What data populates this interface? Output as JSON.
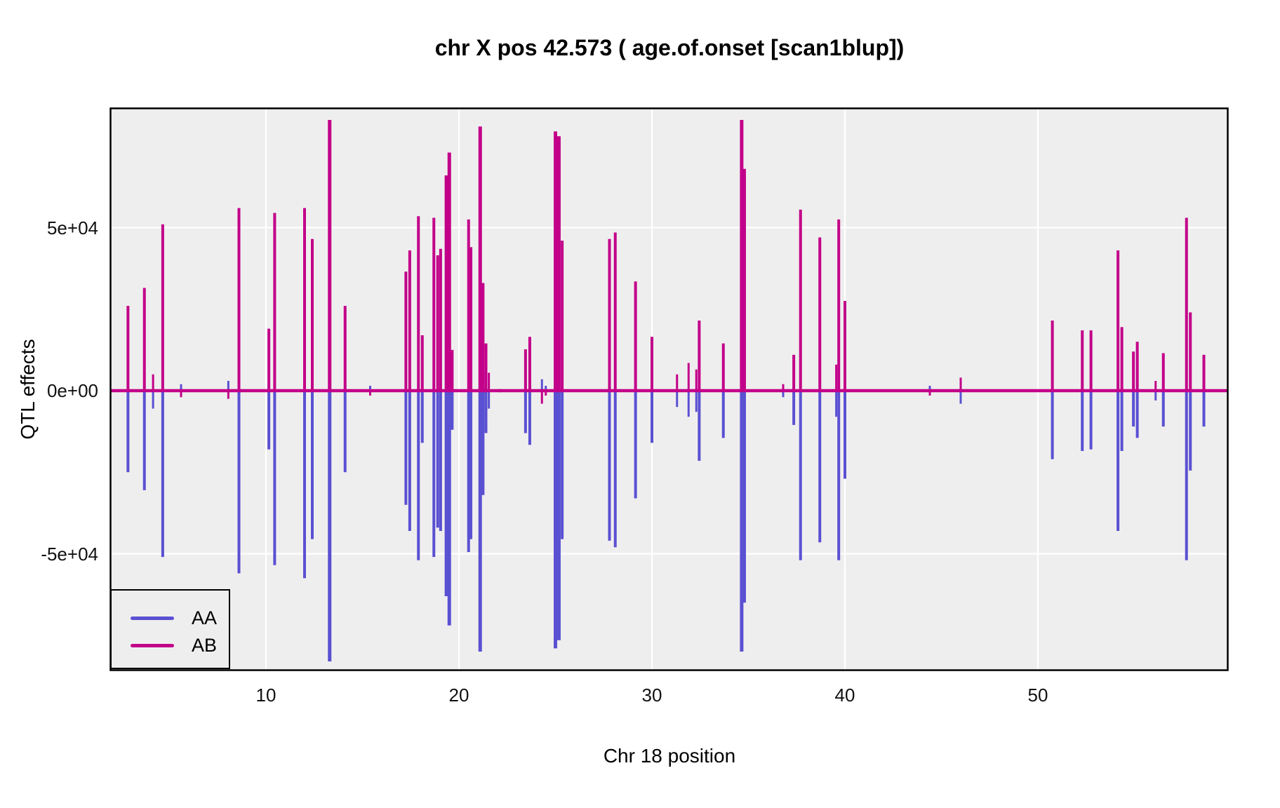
{
  "title": "chr X pos 42.573 ( age.of.onset  [scan1blup])",
  "axes": {
    "x": {
      "label": "Chr 18 position",
      "tick_labels": [
        "10",
        "20",
        "30",
        "40",
        "50"
      ],
      "tick_values": [
        10,
        20,
        30,
        40,
        50
      ],
      "range": [
        1.9,
        59.8
      ]
    },
    "y": {
      "label": "QTL effects",
      "tick_labels": [
        "5e+04",
        "0e+00",
        "-5e+04"
      ],
      "tick_values": [
        50000,
        0,
        -50000
      ],
      "range": [
        -85700,
        86500
      ]
    }
  },
  "legend": {
    "items": [
      {
        "label": "AA",
        "color": "#5A50D2"
      },
      {
        "label": "AB",
        "color": "#C20089"
      }
    ]
  },
  "colors": {
    "panel_background": "#EFEEEE",
    "gridline": "#FFFFFF",
    "panel_border": "#000000",
    "aa_line": "#5A50D2",
    "ab_line": "#C20089",
    "baseline": "#C20089",
    "text": "#000000"
  },
  "chart_data": {
    "type": "line",
    "title": "chr X pos 42.573 ( age.of.onset  [scan1blup])",
    "xlabel": "Chr 18 position",
    "ylabel": "QTL effects",
    "xlim": [
      1.9,
      59.8
    ],
    "ylim": [
      -85700,
      86500
    ],
    "grid": "major-white-on-gray",
    "legend_position": "bottom-left-inside",
    "series": [
      {
        "name": "AA",
        "color": "#5A50D2",
        "direction": "mostly negative spikes"
      },
      {
        "name": "AB",
        "color": "#C20089",
        "direction": "mostly positive spikes"
      }
    ],
    "baseline": {
      "value": 0,
      "color": "#C20089"
    },
    "spike_format": [
      "position",
      "AA_effect",
      "AB_effect"
    ],
    "spikes": [
      [
        2.85,
        -25000,
        26000
      ],
      [
        3.7,
        -30500,
        31500
      ],
      [
        4.15,
        -5500,
        5000
      ],
      [
        4.65,
        -51000,
        51000
      ],
      [
        5.6,
        2000,
        -2000
      ],
      [
        8.05,
        3000,
        -2500
      ],
      [
        8.6,
        -56000,
        56000
      ],
      [
        10.15,
        -18000,
        19000
      ],
      [
        10.45,
        -53500,
        54500
      ],
      [
        12.0,
        -57500,
        56000
      ],
      [
        12.4,
        -45500,
        46500
      ],
      [
        13.3,
        -83000,
        83000
      ],
      [
        14.1,
        -25000,
        26000
      ],
      [
        15.4,
        1500,
        -1500
      ],
      [
        17.25,
        -35000,
        36500
      ],
      [
        17.45,
        -43000,
        43000
      ],
      [
        17.9,
        -52000,
        53500
      ],
      [
        18.1,
        -16000,
        17000
      ],
      [
        18.7,
        -51000,
        53000
      ],
      [
        18.9,
        -42000,
        41500
      ],
      [
        19.05,
        -43000,
        43500
      ],
      [
        19.35,
        -63000,
        66000
      ],
      [
        19.5,
        -72000,
        73000
      ],
      [
        19.65,
        -12000,
        12500
      ],
      [
        20.5,
        -49500,
        52500
      ],
      [
        20.62,
        -45500,
        44000
      ],
      [
        21.1,
        -80000,
        81000
      ],
      [
        21.25,
        -32000,
        33000
      ],
      [
        21.4,
        -13000,
        14500
      ],
      [
        21.55,
        -5500,
        5500
      ],
      [
        22.1,
        -500,
        500
      ],
      [
        23.45,
        -13000,
        12700
      ],
      [
        23.67,
        -16600,
        16500
      ],
      [
        24.3,
        3500,
        -4000
      ],
      [
        24.5,
        1500,
        -1500
      ],
      [
        25.0,
        -79000,
        79500
      ],
      [
        25.18,
        -76500,
        78000
      ],
      [
        25.35,
        -45500,
        46000
      ],
      [
        27.8,
        -46000,
        46500
      ],
      [
        28.1,
        -48000,
        48500
      ],
      [
        29.15,
        -33000,
        33500
      ],
      [
        30.0,
        -16000,
        16500
      ],
      [
        31.3,
        -5000,
        5000
      ],
      [
        31.9,
        -8000,
        8500
      ],
      [
        32.3,
        -6500,
        6500
      ],
      [
        32.45,
        -21500,
        21500
      ],
      [
        33.7,
        -14500,
        14500
      ],
      [
        34.65,
        -80000,
        83000
      ],
      [
        34.78,
        -65000,
        68000
      ],
      [
        36.8,
        -2000,
        2000
      ],
      [
        37.35,
        -10500,
        11000
      ],
      [
        37.7,
        -52000,
        55500
      ],
      [
        38.7,
        -46500,
        47000
      ],
      [
        39.55,
        -8000,
        8000
      ],
      [
        39.68,
        -52000,
        52500
      ],
      [
        40.0,
        -27000,
        27500
      ],
      [
        44.4,
        1500,
        -1500
      ],
      [
        46.0,
        -4000,
        4000
      ],
      [
        50.75,
        -21000,
        21500
      ],
      [
        52.3,
        -18500,
        18500
      ],
      [
        52.75,
        -18000,
        18500
      ],
      [
        54.15,
        -43000,
        43000
      ],
      [
        54.35,
        -18500,
        19500
      ],
      [
        54.95,
        -11000,
        12000
      ],
      [
        55.15,
        -14500,
        15000
      ],
      [
        56.1,
        -3000,
        3000
      ],
      [
        56.5,
        -11000,
        11500
      ],
      [
        57.7,
        -52000,
        53000
      ],
      [
        57.9,
        -24500,
        24000
      ],
      [
        58.6,
        -11000,
        11000
      ]
    ]
  }
}
